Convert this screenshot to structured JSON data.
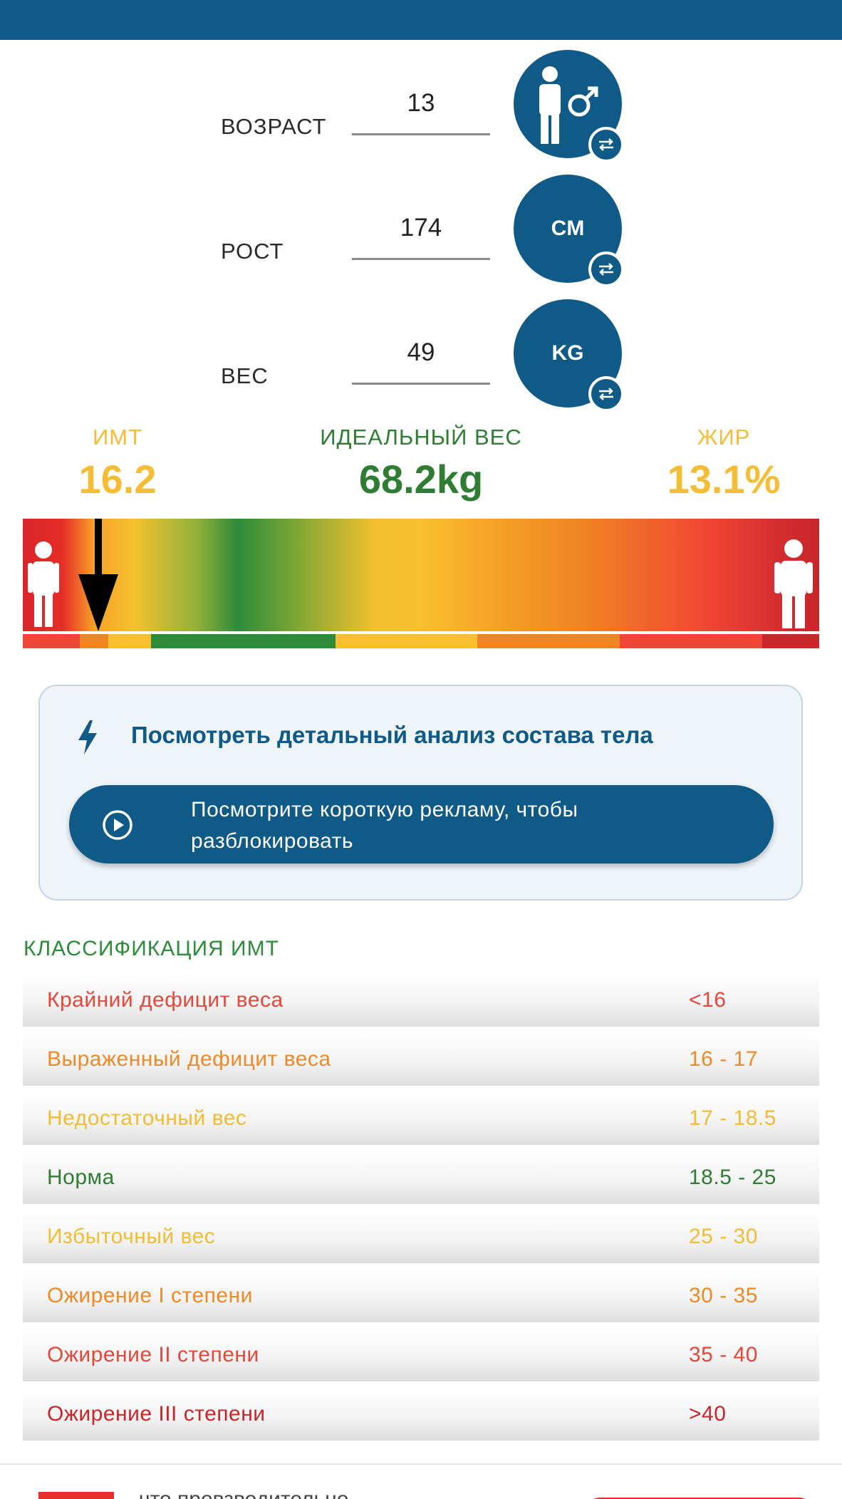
{
  "inputs": {
    "age": {
      "label": "ВОЗРАСТ",
      "value": "13",
      "unit_icon": "male-person-icon"
    },
    "height": {
      "label": "РОСТ",
      "value": "174",
      "unit": "CM"
    },
    "weight": {
      "label": "ВЕС",
      "value": "49",
      "unit": "KG"
    }
  },
  "stats": {
    "bmi": {
      "label": "ИМТ",
      "value": "16.2"
    },
    "ideal": {
      "label": "ИДЕАЛЬНЫЙ ВЕС",
      "value": "68.2kg"
    },
    "fat": {
      "label": "ЖИР",
      "value": "13.1%"
    }
  },
  "gauge": {
    "bmi_value": 16.2,
    "scale_min": 15,
    "scale_max": 43
  },
  "analysis": {
    "title": "Посмотреть детальный анализ состава тела",
    "ad_button_label": "Посмотрите короткую рекламу, чтобы разблокировать"
  },
  "classification": {
    "title": "КЛАССИФИКАЦИЯ ИМТ",
    "rows": [
      {
        "name": "Крайний дефицит веса",
        "range": "<16",
        "color": "#e5483a"
      },
      {
        "name": "Выраженный дефицит веса",
        "range": "16 - 17",
        "color": "#ef8a26"
      },
      {
        "name": "Недостаточный вес",
        "range": "17 - 18.5",
        "color": "#f3bd33"
      },
      {
        "name": "Норма",
        "range": "18.5 - 25",
        "color": "#2e7d32"
      },
      {
        "name": "Избыточный вес",
        "range": "25 - 30",
        "color": "#f3bd33"
      },
      {
        "name": "Ожирение I степени",
        "range": "30 - 35",
        "color": "#ef8a26"
      },
      {
        "name": "Ожирение II степени",
        "range": "35 - 40",
        "color": "#e5483a"
      },
      {
        "name": "Ожирение III степени",
        "range": ">40",
        "color": "#c8262a"
      }
    ]
  },
  "footer": {
    "text": "...что провзводительно..."
  },
  "colors": {
    "primary": "#0f5a87",
    "yellow": "#f5bd35",
    "green": "#2e7d32"
  }
}
